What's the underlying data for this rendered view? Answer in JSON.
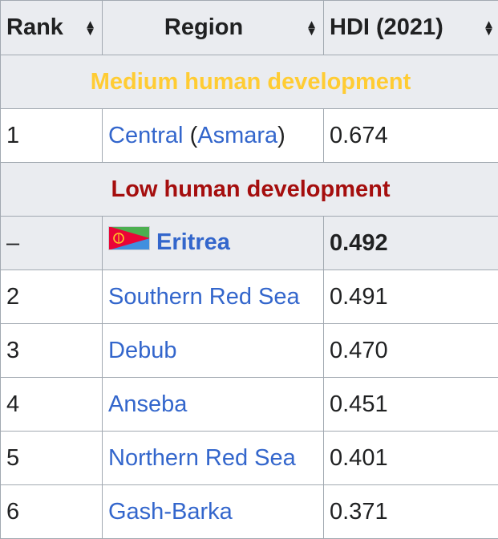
{
  "table": {
    "headers": {
      "rank": "Rank",
      "region": "Region",
      "hdi": "HDI (2021)"
    },
    "groups": {
      "medium": {
        "label": "Medium human development",
        "color": "#ffcc33"
      },
      "low": {
        "label": "Low human development",
        "color": "#a50e0e"
      }
    },
    "rows": [
      {
        "rank": "1",
        "region": "Central",
        "paren_open": "(",
        "capital": "Asmara",
        "paren_close": ")",
        "hdi": "0.674"
      },
      {
        "rank": "–",
        "region": "Eritrea",
        "hdi": "0.492",
        "icon": "eritrea-flag-icon"
      },
      {
        "rank": "2",
        "region": "Southern Red Sea",
        "hdi": "0.491"
      },
      {
        "rank": "3",
        "region": "Debub",
        "hdi": "0.470"
      },
      {
        "rank": "4",
        "region": "Anseba",
        "hdi": "0.451"
      },
      {
        "rank": "5",
        "region": "Northern Red Sea",
        "hdi": "0.401"
      },
      {
        "rank": "6",
        "region": "Gash-Barka",
        "hdi": "0.371"
      }
    ]
  },
  "colors": {
    "link": "#3366cc",
    "header_bg": "#eaecf0",
    "border": "#a2a9b1"
  }
}
